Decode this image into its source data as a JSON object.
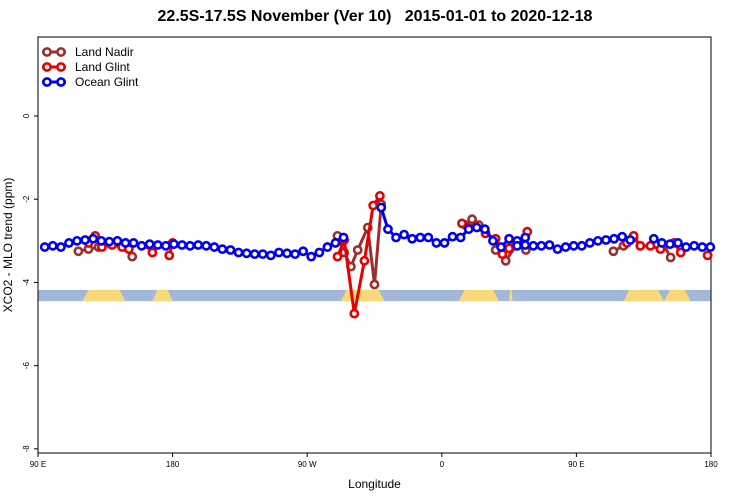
{
  "chart_data": {
    "type": "line",
    "title": "22.5S-17.5S November (Ver 10)   2015-01-01 to 2020-12-18",
    "xlabel": "Longitude",
    "ylabel": "XCO2 - MLO trend (ppm)",
    "xlim": [
      0,
      1
    ],
    "ylim": [
      -8.1,
      1.9
    ],
    "x_ticks": [
      {
        "pos": 0.0,
        "label": "90 E"
      },
      {
        "pos": 0.2,
        "label": "180"
      },
      {
        "pos": 0.4,
        "label": "90 W"
      },
      {
        "pos": 0.6,
        "label": "0"
      },
      {
        "pos": 0.8,
        "label": "90 E"
      },
      {
        "pos": 1.0,
        "label": "180"
      }
    ],
    "y_ticks": [
      {
        "value": 0,
        "label": "0"
      },
      {
        "value": -2,
        "label": "-2"
      },
      {
        "value": -4,
        "label": "-4"
      },
      {
        "value": -6,
        "label": "-6"
      },
      {
        "value": -8,
        "label": "-8"
      }
    ],
    "legend_position": "top-left",
    "grid": false,
    "land_ocean_band": {
      "y_top": -4.18,
      "y_bottom": -4.45,
      "ocean_color": "#a3b8d9",
      "land_color": "#f8d878",
      "land_segments": [
        [
          0.066,
          0.13
        ],
        [
          0.17,
          0.2
        ],
        [
          0.45,
          0.515
        ],
        [
          0.625,
          0.685
        ],
        [
          0.7,
          0.705
        ],
        [
          0.87,
          0.93
        ],
        [
          0.93,
          0.97
        ]
      ]
    },
    "series": [
      {
        "name": "Land Nadir",
        "color": "#9b2f2f",
        "segments": [
          [
            [
              0.06,
              -3.25
            ],
            [
              0.075,
              -3.2
            ],
            [
              0.09,
              -3.15
            ]
          ],
          [
            [
              0.13,
              -3.15
            ],
            [
              0.14,
              -3.38
            ]
          ],
          [
            [
              0.445,
              -2.88
            ],
            [
              0.455,
              -3.28
            ],
            [
              0.465,
              -3.62
            ],
            [
              0.475,
              -3.22
            ],
            [
              0.49,
              -2.68
            ],
            [
              0.5,
              -4.05
            ],
            [
              0.51,
              -2.12
            ]
          ],
          [
            [
              0.635,
              -2.62
            ],
            [
              0.645,
              -2.48
            ],
            [
              0.655,
              -2.62
            ]
          ],
          [
            [
              0.68,
              -3.22
            ],
            [
              0.695,
              -3.48
            ],
            [
              0.71,
              -3.12
            ],
            [
              0.725,
              -3.22
            ]
          ],
          [
            [
              0.855,
              -3.25
            ],
            [
              0.87,
              -3.12
            ],
            [
              0.885,
              -2.92
            ],
            [
              0.895,
              -3.12
            ]
          ],
          [
            [
              0.93,
              -3.1
            ],
            [
              0.94,
              -3.4
            ]
          ]
        ]
      },
      {
        "name": "Land Glint",
        "color": "#e60000",
        "segments": [
          [
            [
              0.075,
              -3.05
            ],
            [
              0.085,
              -2.88
            ],
            [
              0.095,
              -3.15
            ],
            [
              0.11,
              -3.1
            ],
            [
              0.125,
              -3.15
            ],
            [
              0.135,
              -3.2
            ]
          ],
          [
            [
              0.165,
              -3.1
            ],
            [
              0.17,
              -3.28
            ]
          ],
          [
            [
              0.195,
              -3.35
            ],
            [
              0.2,
              -3.05
            ]
          ],
          [
            [
              0.445,
              -3.38
            ],
            [
              0.455,
              -2.98
            ],
            [
              0.47,
              -4.75
            ],
            [
              0.485,
              -3.48
            ],
            [
              0.498,
              -2.15
            ],
            [
              0.508,
              -1.92
            ]
          ],
          [
            [
              0.63,
              -2.58
            ],
            [
              0.65,
              -2.65
            ],
            [
              0.665,
              -2.82
            ],
            [
              0.68,
              -2.95
            ],
            [
              0.69,
              -3.32
            ],
            [
              0.7,
              -3.18
            ],
            [
              0.71,
              -3.05
            ]
          ],
          [
            [
              0.727,
              -2.78
            ]
          ],
          [
            [
              0.875,
              -3.05
            ],
            [
              0.885,
              -2.88
            ],
            [
              0.895,
              -3.12
            ],
            [
              0.91,
              -3.12
            ],
            [
              0.925,
              -3.2
            ]
          ],
          [
            [
              0.945,
              -3.05
            ],
            [
              0.955,
              -3.28
            ]
          ],
          [
            [
              0.995,
              -3.35
            ]
          ]
        ]
      },
      {
        "name": "Ocean Glint",
        "color": "#0000ee",
        "segments": [
          [
            [
              0.01,
              -3.15
            ],
            [
              0.022,
              -3.12
            ],
            [
              0.034,
              -3.15
            ],
            [
              0.046,
              -3.05
            ],
            [
              0.058,
              -3.0
            ],
            [
              0.07,
              -2.98
            ],
            [
              0.082,
              -2.95
            ],
            [
              0.094,
              -3.0
            ],
            [
              0.106,
              -3.02
            ],
            [
              0.118,
              -3.0
            ],
            [
              0.13,
              -3.05
            ],
            [
              0.142,
              -3.05
            ],
            [
              0.154,
              -3.12
            ],
            [
              0.166,
              -3.08
            ],
            [
              0.178,
              -3.1
            ],
            [
              0.19,
              -3.12
            ],
            [
              0.202,
              -3.08
            ],
            [
              0.214,
              -3.1
            ],
            [
              0.226,
              -3.12
            ],
            [
              0.238,
              -3.1
            ],
            [
              0.25,
              -3.12
            ],
            [
              0.262,
              -3.15
            ],
            [
              0.274,
              -3.2
            ],
            [
              0.286,
              -3.22
            ],
            [
              0.298,
              -3.28
            ],
            [
              0.31,
              -3.3
            ],
            [
              0.322,
              -3.32
            ],
            [
              0.334,
              -3.32
            ],
            [
              0.346,
              -3.35
            ],
            [
              0.358,
              -3.28
            ],
            [
              0.37,
              -3.3
            ],
            [
              0.382,
              -3.32
            ],
            [
              0.394,
              -3.25
            ],
            [
              0.406,
              -3.38
            ],
            [
              0.418,
              -3.28
            ],
            [
              0.43,
              -3.15
            ],
            [
              0.442,
              -3.05
            ],
            [
              0.454,
              -2.92
            ]
          ],
          [
            [
              0.51,
              -2.2
            ],
            [
              0.52,
              -2.72
            ],
            [
              0.532,
              -2.92
            ],
            [
              0.544,
              -2.85
            ],
            [
              0.556,
              -2.95
            ],
            [
              0.568,
              -2.92
            ],
            [
              0.58,
              -2.92
            ],
            [
              0.592,
              -3.05
            ],
            [
              0.604,
              -3.05
            ],
            [
              0.616,
              -2.9
            ],
            [
              0.628,
              -2.92
            ],
            [
              0.64,
              -2.72
            ],
            [
              0.652,
              -2.68
            ],
            [
              0.664,
              -2.72
            ],
            [
              0.676,
              -3.0
            ],
            [
              0.688,
              -3.15
            ],
            [
              0.7,
              -2.95
            ],
            [
              0.712,
              -3.0
            ],
            [
              0.724,
              -2.92
            ]
          ],
          [
            [
              0.712,
              -3.12
            ],
            [
              0.724,
              -3.1
            ],
            [
              0.736,
              -3.12
            ],
            [
              0.748,
              -3.12
            ],
            [
              0.76,
              -3.1
            ],
            [
              0.772,
              -3.2
            ],
            [
              0.784,
              -3.15
            ],
            [
              0.796,
              -3.12
            ],
            [
              0.808,
              -3.12
            ],
            [
              0.82,
              -3.05
            ],
            [
              0.832,
              -3.0
            ],
            [
              0.844,
              -2.98
            ],
            [
              0.856,
              -2.95
            ],
            [
              0.868,
              -2.9
            ],
            [
              0.88,
              -2.98
            ]
          ],
          [
            [
              0.915,
              -2.95
            ],
            [
              0.927,
              -3.05
            ],
            [
              0.939,
              -3.08
            ],
            [
              0.951,
              -3.05
            ],
            [
              0.963,
              -3.15
            ],
            [
              0.975,
              -3.12
            ],
            [
              0.987,
              -3.15
            ],
            [
              0.999,
              -3.15
            ]
          ]
        ]
      }
    ]
  }
}
